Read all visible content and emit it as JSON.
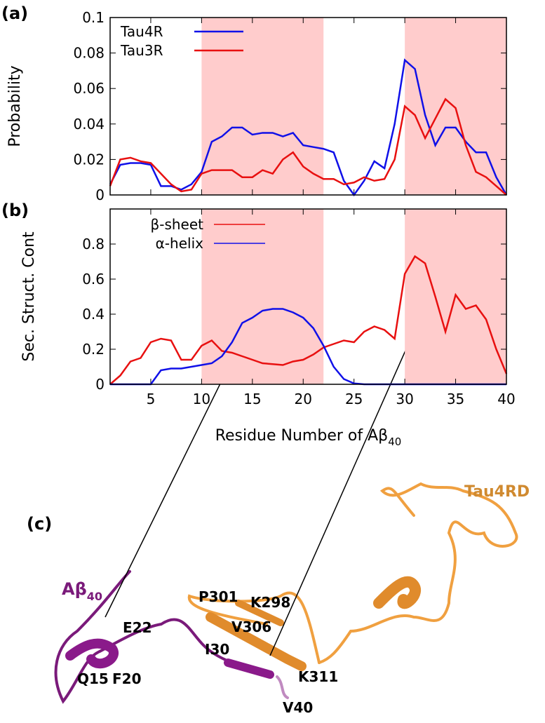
{
  "chart_data": [
    {
      "type": "line",
      "panel": "(a)",
      "ylabel": "Probability",
      "x": [
        1,
        2,
        3,
        4,
        5,
        6,
        7,
        8,
        9,
        10,
        11,
        12,
        13,
        14,
        15,
        16,
        17,
        18,
        19,
        20,
        21,
        22,
        23,
        24,
        25,
        26,
        27,
        28,
        29,
        30,
        31,
        32,
        33,
        34,
        35,
        36,
        37,
        38,
        39,
        40
      ],
      "series": [
        {
          "name": "Tau4R",
          "color": "#1010e8",
          "values": [
            0.006,
            0.017,
            0.018,
            0.018,
            0.017,
            0.005,
            0.005,
            0.003,
            0.006,
            0.013,
            0.03,
            0.033,
            0.038,
            0.038,
            0.034,
            0.035,
            0.035,
            0.033,
            0.035,
            0.028,
            0.027,
            0.026,
            0.024,
            0.008,
            0.0,
            0.008,
            0.019,
            0.015,
            0.04,
            0.076,
            0.071,
            0.045,
            0.028,
            0.038,
            0.038,
            0.03,
            0.024,
            0.024,
            0.01,
            0.0
          ]
        },
        {
          "name": "Tau3R",
          "color": "#e81010",
          "values": [
            0.005,
            0.02,
            0.021,
            0.019,
            0.018,
            0.012,
            0.006,
            0.002,
            0.003,
            0.012,
            0.014,
            0.014,
            0.014,
            0.01,
            0.01,
            0.014,
            0.012,
            0.02,
            0.024,
            0.016,
            0.012,
            0.009,
            0.009,
            0.006,
            0.007,
            0.01,
            0.008,
            0.009,
            0.02,
            0.05,
            0.045,
            0.032,
            0.043,
            0.054,
            0.049,
            0.028,
            0.013,
            0.01,
            0.005,
            0.0
          ]
        }
      ],
      "xlim": [
        1,
        40
      ],
      "xticks": [
        5,
        10,
        15,
        20,
        25,
        30,
        35,
        40
      ],
      "xtick_labels": false,
      "ylim": [
        0,
        0.1
      ],
      "yticks": [
        0,
        0.02,
        0.04,
        0.06,
        0.08,
        0.1
      ],
      "shaded_regions": [
        [
          10,
          22
        ],
        [
          30,
          40
        ]
      ],
      "shade_color": "#ffcccc",
      "legend": "top-left"
    },
    {
      "type": "line",
      "panel": "(b)",
      "ylabel": "Sec. Struct. Cont",
      "xlabel": "Residue Number of Aβ",
      "xlabel_sub": "40",
      "x": [
        1,
        2,
        3,
        4,
        5,
        6,
        7,
        8,
        9,
        10,
        11,
        12,
        13,
        14,
        15,
        16,
        17,
        18,
        19,
        20,
        21,
        22,
        23,
        24,
        25,
        26,
        27,
        28,
        29,
        30,
        31,
        32,
        33,
        34,
        35,
        36,
        37,
        38,
        39,
        40
      ],
      "series": [
        {
          "name": "β-sheet",
          "color": "#e81010",
          "values": [
            0.0,
            0.05,
            0.13,
            0.15,
            0.24,
            0.26,
            0.25,
            0.14,
            0.14,
            0.22,
            0.25,
            0.19,
            0.18,
            0.16,
            0.14,
            0.12,
            0.115,
            0.11,
            0.13,
            0.14,
            0.17,
            0.21,
            0.23,
            0.25,
            0.24,
            0.3,
            0.33,
            0.31,
            0.26,
            0.63,
            0.73,
            0.69,
            0.5,
            0.3,
            0.51,
            0.43,
            0.45,
            0.37,
            0.2,
            0.06
          ]
        },
        {
          "name": "α-helix",
          "color": "#1010e8",
          "values": [
            0,
            0,
            0,
            0,
            0,
            0.08,
            0.09,
            0.09,
            0.1,
            0.11,
            0.12,
            0.16,
            0.24,
            0.35,
            0.38,
            0.42,
            0.43,
            0.43,
            0.41,
            0.38,
            0.32,
            0.22,
            0.1,
            0.03,
            0.005,
            0,
            0,
            0,
            0,
            0,
            0,
            0,
            0,
            0,
            0,
            0,
            0,
            0,
            0,
            0
          ]
        }
      ],
      "xlim": [
        1,
        40
      ],
      "xticks": [
        5,
        10,
        15,
        20,
        25,
        30,
        35,
        40
      ],
      "xtick_labels": true,
      "ylim": [
        0,
        1
      ],
      "yticks": [
        0,
        0.2,
        0.4,
        0.6,
        0.8
      ],
      "shaded_regions": [
        [
          10,
          22
        ],
        [
          30,
          40
        ]
      ],
      "shade_color": "#ffcccc",
      "legend": "top-center"
    }
  ],
  "structure": {
    "panel": "(c)",
    "tau_label": "Tau4RD",
    "abeta_label": "Aβ",
    "abeta_sub": "40",
    "residues": [
      "E22",
      "Q15",
      "F20",
      "P301",
      "K298",
      "V306",
      "I30",
      "K311",
      "V40"
    ]
  }
}
